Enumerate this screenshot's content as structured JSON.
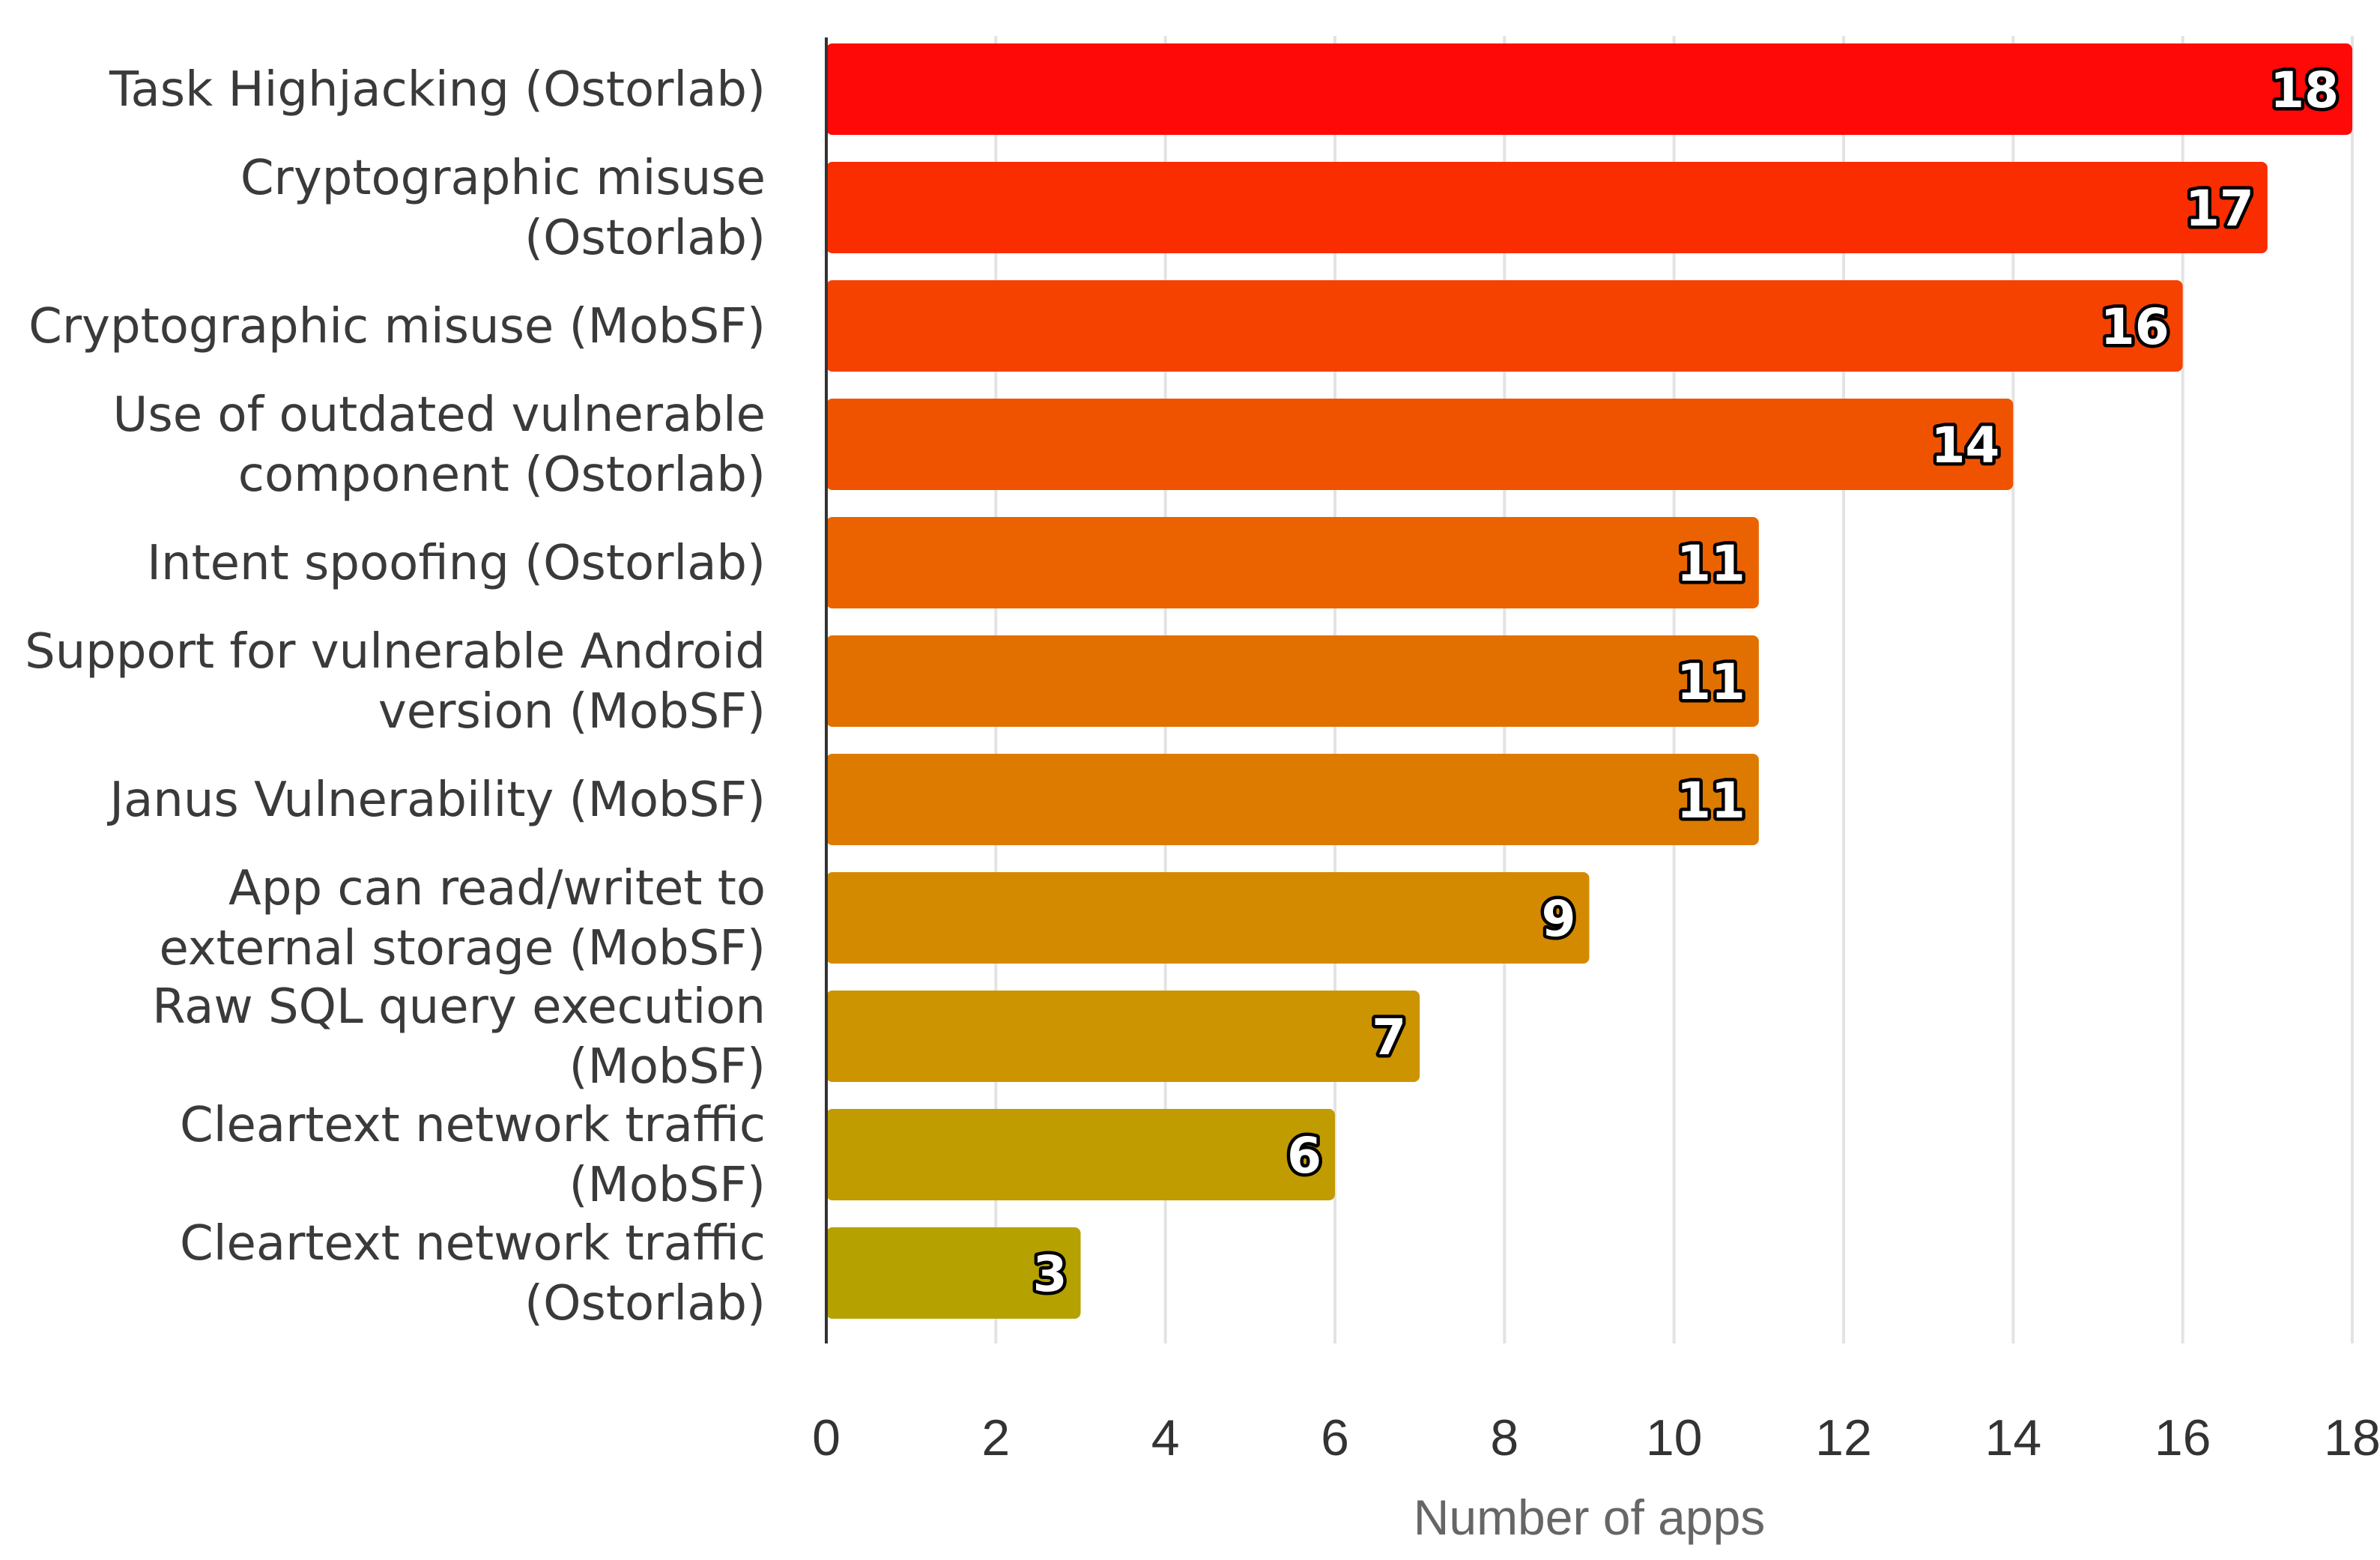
{
  "chart_data": {
    "type": "bar",
    "orientation": "horizontal",
    "title": "",
    "xlabel": "Number of apps",
    "ylabel": "",
    "xlim": [
      0,
      18
    ],
    "xticks": [
      "0",
      "2",
      "4",
      "6",
      "8",
      "10",
      "12",
      "14",
      "16",
      "18"
    ],
    "grid": true,
    "categories": [
      [
        "Task Highjacking (Ostorlab)"
      ],
      [
        "Cryptographic misuse",
        "(Ostorlab)"
      ],
      [
        "Cryptographic misuse (MobSF)"
      ],
      [
        "Use of outdated vulnerable",
        "component (Ostorlab)"
      ],
      [
        "Intent spoofing (Ostorlab)"
      ],
      [
        "Support for vulnerable Android",
        "version (MobSF)"
      ],
      [
        "Janus Vulnerability (MobSF)"
      ],
      [
        "App can read/writet to",
        "external storage (MobSF)"
      ],
      [
        "Raw SQL query execution",
        "(MobSF)"
      ],
      [
        "Cleartext network traffic",
        "(MobSF)"
      ],
      [
        "Cleartext network traffic",
        "(Ostorlab)"
      ]
    ],
    "values": [
      18,
      17,
      16,
      14,
      11,
      11,
      11,
      9,
      7,
      6,
      3
    ],
    "data_labels": [
      "18",
      "17",
      "16",
      "14",
      "11",
      "11",
      "11",
      "9",
      "7",
      "6",
      "3"
    ],
    "colors": [
      "#ff0808",
      "#f92d00",
      "#f54200",
      "#f05300",
      "#ea6300",
      "#e27000",
      "#dc7b00",
      "#d48a00",
      "#cb9400",
      "#c09c00",
      "#b5a200"
    ]
  }
}
